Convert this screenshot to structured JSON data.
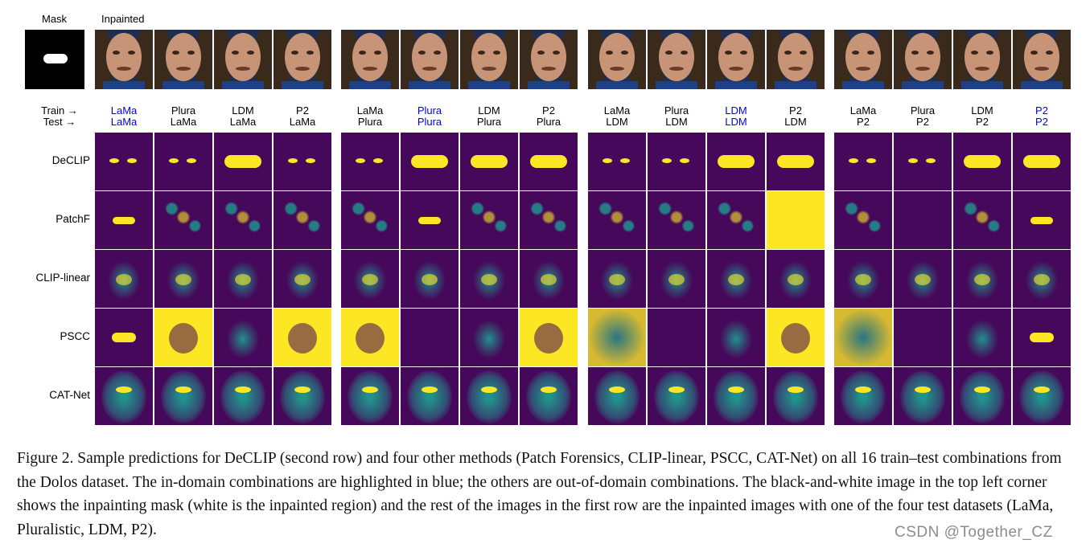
{
  "header": {
    "mask_label": "Mask",
    "inpainted_label": "Inpainted"
  },
  "axis": {
    "train_label": "Train →",
    "test_label": "Test →"
  },
  "columns": [
    {
      "train": "LaMa",
      "test": "LaMa",
      "in_domain": true
    },
    {
      "train": "Plura",
      "test": "LaMa",
      "in_domain": false
    },
    {
      "train": "LDM",
      "test": "LaMa",
      "in_domain": false
    },
    {
      "train": "P2",
      "test": "LaMa",
      "in_domain": false
    },
    {
      "train": "LaMa",
      "test": "Plura",
      "in_domain": false
    },
    {
      "train": "Plura",
      "test": "Plura",
      "in_domain": true
    },
    {
      "train": "LDM",
      "test": "Plura",
      "in_domain": false
    },
    {
      "train": "P2",
      "test": "Plura",
      "in_domain": false
    },
    {
      "train": "LaMa",
      "test": "LDM",
      "in_domain": false
    },
    {
      "train": "Plura",
      "test": "LDM",
      "in_domain": false
    },
    {
      "train": "LDM",
      "test": "LDM",
      "in_domain": true
    },
    {
      "train": "P2",
      "test": "LDM",
      "in_domain": false
    },
    {
      "train": "LaMa",
      "test": "P2",
      "in_domain": false
    },
    {
      "train": "Plura",
      "test": "P2",
      "in_domain": false
    },
    {
      "train": "LDM",
      "test": "P2",
      "in_domain": false
    },
    {
      "train": "P2",
      "test": "P2",
      "in_domain": true
    }
  ],
  "rows": [
    "DeCLIP",
    "PatchF",
    "CLIP-linear",
    "PSCC",
    "CAT-Net"
  ],
  "colors": {
    "heat_background": "#46085a",
    "heat_high": "#fde725",
    "heat_mid": "#21918c",
    "in_domain_text": "#0000ee"
  },
  "caption": "Figure 2.  Sample predictions for DeCLIP (second row) and four other methods (Patch Forensics, CLIP-linear, PSCC, CAT-Net) on all 16 train–test combinations from the Dolos dataset.  The in-domain combinations are highlighted in blue; the others are out-of-domain combinations. The black-and-white image in the top left corner shows the inpainting mask (white is the inpainted region) and the rest of the images in the first row are the inpainted images with one of the four test datasets (LaMa, Pluralistic, LDM, P2).",
  "watermark": "CSDN @Together_CZ"
}
